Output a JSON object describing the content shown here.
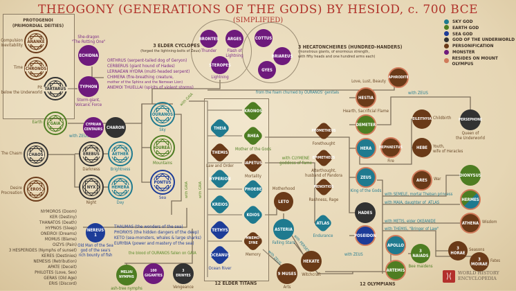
{
  "title": "THEOGONY (GENERATIONS OF THE GODS) BY HESIOD, c. 700 BCE",
  "subtitle": "(SIMPLIFIED)",
  "colors": {
    "sky": "#1f7a8f",
    "earth": "#4e7d22",
    "sea": "#1d3c98",
    "underworld": "#323232",
    "personification": "#6a3a18",
    "monster": "#6e1a7c",
    "olympus": "#d07a5a",
    "title": "#b0322a"
  },
  "legend": [
    {
      "label": "SKY GOD",
      "type": "sky"
    },
    {
      "label": "EARTH GOD",
      "type": "earth"
    },
    {
      "label": "SEA GOD",
      "type": "sea"
    },
    {
      "label": "GOD OF THE UNDERWORLD",
      "type": "underworld"
    },
    {
      "label": "PERSONIFICATION",
      "type": "personification"
    },
    {
      "label": "MONSTER",
      "type": "monster"
    },
    {
      "label": "RESIDES ON MOUNT OLYMPUS",
      "type": "olympus"
    }
  ],
  "groups": {
    "protogenoi": "PROTOGENOI\n(PRIMORDIAL DEITIES)",
    "cyclopes": "3 ELDER CYCLOPES",
    "cyclopes_desc": "(forged the lightning-bolts of Zeus)",
    "hecatoncheires": "3 HECATONCHEIRES (HUNDRED-HANDERS)",
    "hecatoncheires_desc": "(monstrous giants, of enormous strength,\nwith fifty heads and one hundred arms each)",
    "titans": "12 ELDER TITANS",
    "olympians": "12 OLYMPIANS"
  },
  "nodes": [
    {
      "id": "ananke",
      "label": "ANANKE",
      "type": "personification",
      "caption": "Compulsion\nInevitability"
    },
    {
      "id": "chronos",
      "label": "CHRONOS",
      "type": "personification",
      "caption": "Time"
    },
    {
      "id": "tartarus",
      "label": "TARTARUS",
      "type": "underworld",
      "caption": "Pit\nbelow the Underworld"
    },
    {
      "id": "gaia",
      "label": "GAIA",
      "type": "earth",
      "caption": "Earth"
    },
    {
      "id": "chaos",
      "label": "CHAOS",
      "type": "underworld",
      "caption": "The Chasm"
    },
    {
      "id": "eros",
      "label": "EROS",
      "type": "personification",
      "caption": "Desire\nProcreation"
    },
    {
      "id": "erebus",
      "label": "EREBUS",
      "type": "underworld",
      "caption": "Darkness"
    },
    {
      "id": "aether",
      "label": "AETHER",
      "type": "sky",
      "caption": "Brightness"
    },
    {
      "id": "nyx",
      "label": "NYX",
      "type": "underworld",
      "caption": "Night"
    },
    {
      "id": "hemera",
      "label": "HEMERA",
      "type": "sky",
      "caption": "Day"
    },
    {
      "id": "ouranos",
      "label": "OURANOS",
      "type": "sky",
      "caption": "Sky"
    },
    {
      "id": "ourea",
      "label": "OUREA",
      "type": "earth",
      "caption": "Mountains"
    },
    {
      "id": "pontus",
      "label": "PONTUS",
      "type": "sea",
      "caption": "Sea"
    },
    {
      "id": "echidna",
      "label": "ECHIDNA",
      "type": "monster",
      "caption": "She-dragon\n\"The Rotting One\""
    },
    {
      "id": "typhon",
      "label": "TYPHON",
      "type": "monster",
      "caption": "Storm-giant,\nVolcanic Force"
    },
    {
      "id": "centaurs",
      "label": "CYPRIAN\nCENTAURS",
      "type": "monster",
      "caption": ""
    },
    {
      "id": "charon",
      "label": "CHARON",
      "type": "underworld",
      "caption": ""
    },
    {
      "id": "brontes",
      "label": "BRONTES",
      "type": "monster",
      "caption": "Thunder"
    },
    {
      "id": "arges",
      "label": "ARGES",
      "type": "monster",
      "caption": "Flash of\nLightning"
    },
    {
      "id": "steropes",
      "label": "STEROPES",
      "type": "monster",
      "caption": "Lightning"
    },
    {
      "id": "cottus",
      "label": "COTTUS",
      "type": "monster",
      "caption": ""
    },
    {
      "id": "briareus",
      "label": "BRIAREUS",
      "type": "monster",
      "caption": ""
    },
    {
      "id": "gyes",
      "label": "GYES",
      "type": "monster",
      "caption": ""
    },
    {
      "id": "nereus",
      "label": "NEREUS\n1",
      "type": "sea",
      "caption": "Old Man of the Sea\ngod of the sea's\nrich bounty of fish"
    },
    {
      "id": "meliai",
      "label": "MELIAI\nNYMPHS",
      "type": "earth",
      "caption": "ash-tree nymphs"
    },
    {
      "id": "gigantes",
      "label": "100\nGIGANTES",
      "type": "monster",
      "caption": ""
    },
    {
      "id": "erinyes",
      "label": "3\nERINYES",
      "type": "underworld",
      "caption": "Vengeance"
    },
    {
      "id": "kronos",
      "label": "KRONOS",
      "type": "earth",
      "caption": ""
    },
    {
      "id": "theia",
      "label": "THEIA",
      "type": "sky",
      "caption": ""
    },
    {
      "id": "rhea",
      "label": "RHEA",
      "type": "earth",
      "caption": "Mother of the Gods"
    },
    {
      "id": "themis",
      "label": "THEMIS",
      "type": "personification",
      "caption": "Law and Order"
    },
    {
      "id": "iapetus",
      "label": "IAPETUS",
      "type": "personification",
      "caption": "Mortality"
    },
    {
      "id": "hyperion",
      "label": "HYPERION",
      "type": "sky",
      "caption": ""
    },
    {
      "id": "phoebe",
      "label": "PHOEBE",
      "type": "sky",
      "caption": ""
    },
    {
      "id": "kreios",
      "label": "KREIOS",
      "type": "sky",
      "caption": ""
    },
    {
      "id": "koios",
      "label": "KOIOS",
      "type": "sky",
      "caption": ""
    },
    {
      "id": "tethys",
      "label": "TETHYS",
      "type": "sea",
      "caption": ""
    },
    {
      "id": "mnemosyne",
      "label": "MNEMO-\nSYNE",
      "type": "personification",
      "caption": "Memory"
    },
    {
      "id": "oceanus",
      "label": "OCEANUS",
      "type": "sea",
      "caption": "Ocean River"
    },
    {
      "id": "prometheus",
      "label": "PROMETHEUS",
      "type": "personification",
      "caption": "Forethought"
    },
    {
      "id": "epimetheus",
      "label": "EPIMETHEUS",
      "type": "personification",
      "caption": "Afterthought,\nhusband of Pandora"
    },
    {
      "id": "menoitios",
      "label": "MENOITIOS",
      "type": "personification",
      "caption": "Rashness, Rage"
    },
    {
      "id": "atlas",
      "label": "ATLAS",
      "type": "sky",
      "caption": "Endurance"
    },
    {
      "id": "leto",
      "label": "LETO",
      "type": "personification",
      "caption": "Motherhood"
    },
    {
      "id": "asteria",
      "label": "ASTERIA",
      "type": "sky",
      "caption": "Falling Stars"
    },
    {
      "id": "hekate",
      "label": "HEKATE",
      "type": "personification",
      "caption": "Witchcraft"
    },
    {
      "id": "muses",
      "label": "9 MUSES",
      "type": "personification",
      "caption": "Arts"
    },
    {
      "id": "aphrodite",
      "label": "APHRODITE",
      "type": "personification",
      "caption": "Love, Lust, Beauty"
    },
    {
      "id": "hestia",
      "label": "HESTIA",
      "type": "personification",
      "caption": "Hearth, Sacrificial Flame"
    },
    {
      "id": "demeter",
      "label": "DEMETER",
      "type": "earth",
      "caption": ""
    },
    {
      "id": "hera",
      "label": "HERA",
      "type": "sky",
      "caption": ""
    },
    {
      "id": "hephaestus",
      "label": "HEPHAESTUS",
      "type": "personification",
      "caption": "Fire"
    },
    {
      "id": "zeus",
      "label": "ZEUS",
      "type": "sky",
      "caption": "King of the Gods"
    },
    {
      "id": "hades",
      "label": "HADES",
      "type": "underworld",
      "caption": ""
    },
    {
      "id": "poseidon",
      "label": "POSEIDON",
      "type": "sea",
      "caption": ""
    },
    {
      "id": "eileithyia",
      "label": "EILEITHYIA",
      "type": "personification",
      "caption": "Childbirth"
    },
    {
      "id": "persephone",
      "label": "PERSEPHONE",
      "type": "underworld",
      "caption": "Queen of\nthe Underworld"
    },
    {
      "id": "hebe",
      "label": "HEBE",
      "type": "personification",
      "caption": "Youth,\nwife of Heracles"
    },
    {
      "id": "ares",
      "label": "ARES",
      "type": "personification",
      "caption": "War"
    },
    {
      "id": "dionysus",
      "label": "DIONYSUS",
      "type": "earth",
      "caption": ""
    },
    {
      "id": "hermes",
      "label": "HERMES",
      "type": "earth",
      "caption": ""
    },
    {
      "id": "athena",
      "label": "ATHENA",
      "type": "personification",
      "caption": "Wisdom"
    },
    {
      "id": "apollo",
      "label": "APOLLO",
      "type": "sky",
      "caption": ""
    },
    {
      "id": "artemis",
      "label": "ARTEMIS",
      "type": "earth",
      "caption": ""
    },
    {
      "id": "naiads",
      "label": "3\nNAIADS",
      "type": "earth",
      "caption": "Bee maidens"
    },
    {
      "id": "horae",
      "label": "3\nHORAE",
      "type": "personification",
      "caption": "Seasons"
    },
    {
      "id": "moirae",
      "label": "3\nMOIRAE",
      "type": "personification",
      "caption": "Fates"
    }
  ],
  "monster_children": [
    "ORTHRUS (serpent-tailed dog of Geryon)",
    "CERBERUS (giant hound of Hades)",
    "LERNAEAN HYDRA (multi-headed serpent)",
    "CHIMERA (fire-breathing creature,",
    "mother of the Sphinx and the Nemean Lion)",
    "ANEMOI THUELLAI (spirits of violent storms)"
  ],
  "nyx_children": [
    "NYMOROS (Doom)",
    "KER (Destiny)",
    "THANATOS (Death)",
    "HYPNOS (Sleep)",
    "ONEIROI (Dreams)",
    "MOMUS (Blame)",
    "OIZYS (Pain)",
    "3 HESPERIDES (Nymphs of sunset)",
    "KERES (Destinies)",
    "NEMESIS (Retribution)",
    "APATE (Deceit)",
    "PHILOTES (Love, Sex)",
    "GERAS (Old Age)",
    "ERIS (Discord)"
  ],
  "pontus_children": [
    "THAUMAS (the wonders of the sea)",
    "PHORKYS (the hidden dangers of the deep)",
    "KETO (sea-monsters, whales & large sharks)",
    "EURYBIA (power and mastery of the sea)"
  ],
  "relations": {
    "with_zeus_centaurs": "with ZEUS",
    "with_gaia_1": "with GAIA",
    "with_gaia_2": "with GAIA",
    "with_gaia_3": "with GAIA",
    "blood": "the blood of OURANOS fallen on GAIA",
    "foam": "from the foam churned by OURANOS' genitals",
    "clymene": "with CLYMENE\ngoddess of fame",
    "perses": "with PERSES",
    "zeus_muses": "with ZEUS",
    "zeus_persephone": "with ZEUS",
    "semele": "with SEMELE, mortal Theban princess",
    "maia": "with MAIA, daughter of  ATLAS",
    "metis": "with METIS, elder OKEANIDE",
    "themis": "with THEMIS, \"Bringer of Law\"",
    "zeus_leto": "with ZEUS"
  },
  "logo": {
    "text": "WORLD HISTORY\nENCYCLOPEDIA"
  }
}
